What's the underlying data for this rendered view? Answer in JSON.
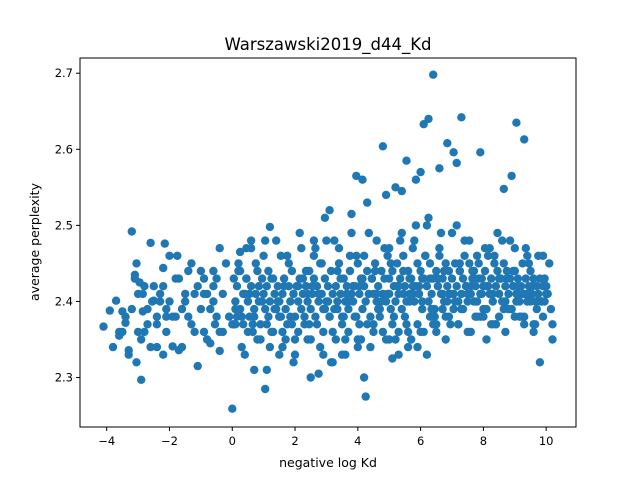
{
  "chart_data": {
    "type": "scatter",
    "title": "Warszawski2019_d44_Kd",
    "xlabel": "negative log Kd",
    "ylabel": "average perplexity",
    "xlim": [
      -4.85,
      10.95
    ],
    "ylim": [
      2.235,
      2.72
    ],
    "xticks": [
      -4,
      -2,
      0,
      2,
      4,
      6,
      8,
      10
    ],
    "yticks": [
      2.3,
      2.4,
      2.5,
      2.6,
      2.7
    ],
    "grid": false,
    "legend": "none",
    "color": "#1f77b4",
    "series": [
      {
        "x": [
          -4.1,
          -3.9,
          -3.7,
          -3.6,
          -3.5,
          -3.4,
          -3.3,
          -3.2,
          -3.1,
          -3.05,
          -3.0,
          -2.95,
          -2.9,
          -2.85,
          -2.8,
          -2.7,
          -2.6,
          -2.5,
          -2.4,
          -2.3,
          -2.2,
          -2.15,
          -2.1,
          -2.0,
          -1.9,
          -1.8,
          -1.7,
          -1.6,
          -1.5,
          -1.4,
          -1.3,
          -1.2,
          -1.1,
          -1.0,
          -0.9,
          -0.8,
          -0.7,
          -0.6,
          -0.5,
          -0.4,
          -0.3,
          -0.2,
          -3.6,
          -3.4,
          -3.2,
          -2.9,
          -2.7,
          -2.5,
          -2.3,
          -2.1,
          -1.9,
          -1.7,
          -1.5,
          -1.3,
          -1.1,
          -0.9,
          -0.7,
          -0.5,
          -0.3,
          -3.8,
          -3.3,
          -2.8,
          -2.6,
          -2.4,
          -2.2,
          -1.6,
          -1.2,
          -0.8,
          -0.6,
          -0.4,
          -3.05,
          -2.4,
          -1.8,
          -0.9,
          -0.4,
          -2.85,
          -2.1,
          -3.1,
          -2.2,
          -1.0,
          -0.6,
          -2.55,
          -3.0,
          -1.75,
          -0.55,
          -3.5,
          -2.0,
          -1.4,
          -0.1,
          0.0,
          0.05,
          0.1,
          0.15,
          0.2,
          0.25,
          0.3,
          0.35,
          0.4,
          0.45,
          0.5,
          0.55,
          0.6,
          0.65,
          0.7,
          0.75,
          0.8,
          0.85,
          0.9,
          0.95,
          1.0,
          1.05,
          1.1,
          1.15,
          1.2,
          1.25,
          1.3,
          1.35,
          1.4,
          1.45,
          1.5,
          1.55,
          1.6,
          1.65,
          1.7,
          1.75,
          1.8,
          1.85,
          1.9,
          1.95,
          2.0,
          2.05,
          2.1,
          2.15,
          2.2,
          2.25,
          2.3,
          2.35,
          2.4,
          2.45,
          2.5,
          2.55,
          2.6,
          2.65,
          2.7,
          2.75,
          2.8,
          2.85,
          2.9,
          2.95,
          3.0,
          3.05,
          3.1,
          3.15,
          3.2,
          3.25,
          3.3,
          3.35,
          3.4,
          3.45,
          3.5,
          3.55,
          3.6,
          3.65,
          3.7,
          3.75,
          3.8,
          3.85,
          3.9,
          3.95,
          4.0,
          4.05,
          4.1,
          4.15,
          4.2,
          4.25,
          4.3,
          4.35,
          4.4,
          4.45,
          4.5,
          4.55,
          4.6,
          4.65,
          4.7,
          4.75,
          4.8,
          4.85,
          4.9,
          4.95,
          5.0,
          5.05,
          5.1,
          5.15,
          5.2,
          5.25,
          5.3,
          5.35,
          5.4,
          5.45,
          5.5,
          5.55,
          5.6,
          5.65,
          5.7,
          5.75,
          5.8,
          5.85,
          5.9,
          5.95,
          6.0,
          6.05,
          6.1,
          6.15,
          6.2,
          6.25,
          6.3,
          6.35,
          6.4,
          6.45,
          6.5,
          6.55,
          6.6,
          6.65,
          6.7,
          6.75,
          6.8,
          6.85,
          6.9,
          6.95,
          7.0,
          7.05,
          7.1,
          7.15,
          7.2,
          7.25,
          7.3,
          7.35,
          7.4,
          7.45,
          7.5,
          7.55,
          7.6,
          7.65,
          7.7,
          7.75,
          7.8,
          7.85,
          7.9,
          7.95,
          8.0,
          8.05,
          8.1,
          8.15,
          8.2,
          8.25,
          8.3,
          8.35,
          8.4,
          8.45,
          8.5,
          8.55,
          8.6,
          8.65,
          8.7,
          8.75,
          8.8,
          8.85,
          8.9,
          8.95,
          9.0,
          9.05,
          9.1,
          9.15,
          9.2,
          9.25,
          9.3,
          9.35,
          9.4,
          9.45,
          9.5,
          9.55,
          9.6,
          9.65,
          9.7,
          9.75,
          9.8,
          9.85,
          9.9,
          9.95,
          10.0,
          10.1,
          10.2,
          0.1,
          0.3,
          0.5,
          0.7,
          0.9,
          1.1,
          1.3,
          1.5,
          1.7,
          1.9,
          2.1,
          2.3,
          2.5,
          2.7,
          2.9,
          3.1,
          3.3,
          3.5,
          3.7,
          3.9,
          4.1,
          4.3,
          4.5,
          4.7,
          4.9,
          5.1,
          5.3,
          5.5,
          5.7,
          5.9,
          6.1,
          6.3,
          6.5,
          6.7,
          6.9,
          7.1,
          7.3,
          7.5,
          7.7,
          7.9,
          8.1,
          8.3,
          8.5,
          8.7,
          8.9,
          9.1,
          9.3,
          9.5,
          9.7,
          9.9,
          0.2,
          0.6,
          1.0,
          1.4,
          1.8,
          2.2,
          2.6,
          3.0,
          3.4,
          3.8,
          4.2,
          4.6,
          5.0,
          5.4,
          5.8,
          6.2,
          6.6,
          7.0,
          7.4,
          7.8,
          8.2,
          8.6,
          9.0,
          9.4,
          9.8,
          0.4,
          0.8,
          1.2,
          1.6,
          2.0,
          2.4,
          2.8,
          3.2,
          3.6,
          4.0,
          4.4,
          4.8,
          5.2,
          5.6,
          6.0,
          6.4,
          6.8,
          7.2,
          7.6,
          8.0,
          8.4,
          8.8,
          9.2,
          9.6,
          10.0,
          0.05,
          0.55,
          1.15,
          1.65,
          2.25,
          2.75,
          3.35,
          3.85,
          4.45,
          4.95,
          5.45,
          5.95,
          6.55,
          7.05,
          7.65,
          8.15,
          8.75,
          9.25,
          9.85,
          0.35,
          0.85,
          1.45,
          1.95,
          2.55,
          3.05,
          3.65,
          4.15,
          4.75,
          5.25,
          5.75,
          6.35,
          6.85,
          7.45,
          7.95,
          8.55,
          9.05,
          9.55,
          10.05,
          0.25,
          0.75,
          1.25,
          1.75,
          2.35,
          2.85,
          3.45,
          3.95,
          4.55,
          5.05,
          5.65,
          6.15,
          6.75,
          7.25,
          7.85,
          8.35,
          8.95,
          9.45,
          9.95,
          0.15,
          0.65,
          1.35,
          1.85,
          2.45,
          2.95,
          3.55,
          4.05,
          4.65,
          5.15,
          5.55,
          6.05,
          6.45,
          6.95,
          7.35,
          7.75,
          8.25,
          8.65,
          9.15,
          9.65,
          10.15,
          0.45,
          1.05,
          1.55,
          2.15,
          2.65,
          3.25,
          3.75,
          4.35,
          4.85,
          5.35,
          5.85,
          6.25,
          6.65,
          7.15,
          7.55,
          8.05,
          8.45,
          8.85,
          9.35,
          9.75,
          0.0,
          0.2,
          0.45,
          1.1,
          1.5,
          2.0,
          2.5,
          2.9,
          3.2,
          3.6,
          4.0,
          4.5,
          5.0,
          5.3,
          5.6,
          5.9,
          6.2,
          6.5,
          6.8,
          7.2,
          7.5,
          7.8,
          8.1,
          8.4,
          8.7,
          9.0,
          9.3,
          9.6,
          9.9,
          10.2,
          6.4,
          6.1,
          6.25,
          7.3,
          9.05,
          9.3,
          6.85,
          7.05,
          4.8,
          7.9,
          7.15,
          6.0,
          5.55,
          6.6,
          5.85,
          3.95,
          4.15,
          5.4,
          8.9,
          8.65,
          0.25,
          0.6,
          1.2,
          2.6,
          2.95,
          3.1,
          3.8,
          4.3,
          4.9,
          5.2,
          4.25,
          4.2,
          3.15,
          2.75,
          1.95,
          1.6,
          0.7,
          1.05,
          3.5,
          5.1,
          6.35,
          6.7,
          5.45,
          5.75,
          6.05,
          7.6,
          8.2,
          8.5,
          8.95,
          9.45,
          0.1,
          0.95,
          1.5,
          2.1,
          2.4,
          3.35,
          3.7,
          4.05,
          4.6,
          5.0,
          5.3,
          5.65,
          5.95,
          6.3,
          6.55,
          6.9,
          7.25,
          7.7,
          8.0,
          8.3,
          8.75,
          9.1,
          9.4,
          9.7,
          10.0
        ],
        "y": [
          2.367,
          2.388,
          2.401,
          2.355,
          2.387,
          2.372,
          2.336,
          2.492,
          2.435,
          2.45,
          2.41,
          2.425,
          2.297,
          2.387,
          2.42,
          2.39,
          2.477,
          2.401,
          2.38,
          2.41,
          2.444,
          2.476,
          2.36,
          2.46,
          2.341,
          2.43,
          2.336,
          2.39,
          2.41,
          2.44,
          2.45,
          2.41,
          2.315,
          2.39,
          2.43,
          2.41,
          2.345,
          2.44,
          2.43,
          2.47,
          2.41,
          2.45,
          2.36,
          2.38,
          2.39,
          2.35,
          2.37,
          2.42,
          2.4,
          2.39,
          2.38,
          2.43,
          2.4,
          2.37,
          2.42,
          2.41,
          2.39,
          2.38,
          2.36,
          2.34,
          2.33,
          2.36,
          2.34,
          2.37,
          2.33,
          2.34,
          2.36,
          2.35,
          2.4,
          2.36,
          2.32,
          2.34,
          2.38,
          2.36,
          2.335,
          2.41,
          2.38,
          2.43,
          2.42,
          2.44,
          2.42,
          2.4,
          2.36,
          2.46,
          2.37,
          2.36,
          2.4,
          2.38,
          2.38,
          2.259,
          2.37,
          2.4,
          2.42,
          2.44,
          2.39,
          2.38,
          2.37,
          2.41,
          2.43,
          2.4,
          2.38,
          2.42,
          2.36,
          2.39,
          2.41,
          2.44,
          2.4,
          2.37,
          2.43,
          2.41,
          2.39,
          2.42,
          2.38,
          2.4,
          2.36,
          2.43,
          2.41,
          2.39,
          2.42,
          2.4,
          2.38,
          2.41,
          2.43,
          2.39,
          2.37,
          2.42,
          2.4,
          2.44,
          2.41,
          2.38,
          2.42,
          2.4,
          2.43,
          2.39,
          2.41,
          2.37,
          2.42,
          2.4,
          2.44,
          2.39,
          2.41,
          2.43,
          2.38,
          2.42,
          2.4,
          2.45,
          2.41,
          2.39,
          2.43,
          2.4,
          2.42,
          2.38,
          2.44,
          2.41,
          2.39,
          2.42,
          2.4,
          2.45,
          2.41,
          2.38,
          2.43,
          2.4,
          2.42,
          2.39,
          2.44,
          2.41,
          2.4,
          2.42,
          2.38,
          2.45,
          2.41,
          2.43,
          2.39,
          2.42,
          2.4,
          2.44,
          2.41,
          2.38,
          2.43,
          2.41,
          2.45,
          2.4,
          2.42,
          2.39,
          2.44,
          2.41,
          2.43,
          2.4,
          2.46,
          2.41,
          2.39,
          2.44,
          2.42,
          2.4,
          2.45,
          2.41,
          2.43,
          2.39,
          2.46,
          2.42,
          2.4,
          2.44,
          2.41,
          2.43,
          2.47,
          2.4,
          2.42,
          2.45,
          2.41,
          2.44,
          2.4,
          2.43,
          2.46,
          2.42,
          2.4,
          2.45,
          2.41,
          2.43,
          2.39,
          2.44,
          2.42,
          2.46,
          2.41,
          2.43,
          2.4,
          2.45,
          2.42,
          2.44,
          2.41,
          2.43,
          2.39,
          2.45,
          2.42,
          2.4,
          2.44,
          2.41,
          2.43,
          2.46,
          2.42,
          2.4,
          2.45,
          2.41,
          2.43,
          2.44,
          2.42,
          2.4,
          2.45,
          2.41,
          2.43,
          2.39,
          2.44,
          2.42,
          2.46,
          2.41,
          2.43,
          2.4,
          2.45,
          2.42,
          2.44,
          2.41,
          2.43,
          2.4,
          2.45,
          2.42,
          2.44,
          2.41,
          2.43,
          2.39,
          2.42,
          2.44,
          2.41,
          2.43,
          2.4,
          2.42,
          2.45,
          2.41,
          2.43,
          2.4,
          2.42,
          2.44,
          2.41,
          2.43,
          2.4,
          2.42,
          2.41,
          2.43,
          2.4,
          2.42,
          2.4,
          2.42,
          2.45,
          2.35,
          2.37,
          2.34,
          2.36,
          2.38,
          2.35,
          2.37,
          2.36,
          2.38,
          2.35,
          2.37,
          2.36,
          2.38,
          2.35,
          2.37,
          2.36,
          2.38,
          2.35,
          2.37,
          2.36,
          2.38,
          2.35,
          2.37,
          2.36,
          2.38,
          2.35,
          2.37,
          2.36,
          2.38,
          2.35,
          2.37,
          2.36,
          2.38,
          2.37,
          2.39,
          2.38,
          2.4,
          2.39,
          2.41,
          2.4,
          2.38,
          2.39,
          2.37,
          2.38,
          2.4,
          2.39,
          2.41,
          2.38,
          2.4,
          2.39,
          2.46,
          2.45,
          2.47,
          2.46,
          2.48,
          2.45,
          2.47,
          2.46,
          2.48,
          2.47,
          2.49,
          2.46,
          2.48,
          2.47,
          2.49,
          2.48,
          2.5,
          2.47,
          2.49,
          2.48,
          2.46,
          2.47,
          2.48,
          2.47,
          2.46,
          2.32,
          2.33,
          2.35,
          2.34,
          2.36,
          2.33,
          2.35,
          2.34,
          2.36,
          2.33,
          2.35,
          2.34,
          2.36,
          2.35,
          2.34,
          2.36,
          2.37,
          2.38,
          2.37,
          2.36,
          2.38,
          2.37,
          2.39,
          2.38,
          2.37,
          2.42,
          2.43,
          2.41,
          2.44,
          2.42,
          2.43,
          2.41,
          2.44,
          2.42,
          2.43,
          2.41,
          2.44,
          2.42,
          2.43,
          2.41,
          2.44,
          2.42,
          2.43,
          2.41,
          2.4,
          2.41,
          2.42,
          2.4,
          2.41,
          2.42,
          2.4,
          2.41,
          2.43,
          2.4,
          2.42,
          2.41,
          2.43,
          2.4,
          2.42,
          2.41,
          2.43,
          2.4,
          2.42,
          2.41,
          2.44,
          2.45,
          2.43,
          2.46,
          2.44,
          2.45,
          2.43,
          2.46,
          2.44,
          2.45,
          2.43,
          2.46,
          2.44,
          2.45,
          2.43,
          2.46,
          2.44,
          2.45,
          2.43,
          2.38,
          2.37,
          2.39,
          2.38,
          2.37,
          2.39,
          2.38,
          2.37,
          2.39,
          2.38,
          2.37,
          2.39,
          2.38,
          2.37,
          2.39,
          2.38,
          2.37,
          2.39,
          2.38,
          2.37,
          2.39,
          2.47,
          2.48,
          2.46,
          2.49,
          2.47,
          2.48,
          2.46,
          2.49,
          2.47,
          2.48,
          2.5,
          2.51,
          2.49,
          2.5,
          2.48,
          2.47,
          2.49,
          2.48,
          2.47,
          2.46,
          2.37,
          2.44,
          2.43,
          2.31,
          2.33,
          2.35,
          2.3,
          2.33,
          2.32,
          2.35,
          2.34,
          2.37,
          2.35,
          2.33,
          2.36,
          2.34,
          2.33,
          2.36,
          2.35,
          2.37,
          2.36,
          2.38,
          2.35,
          2.37,
          2.36,
          2.38,
          2.37,
          2.36,
          2.38,
          2.37,
          2.698,
          2.633,
          2.64,
          2.642,
          2.635,
          2.613,
          2.608,
          2.596,
          2.604,
          2.596,
          2.582,
          2.57,
          2.585,
          2.575,
          2.56,
          2.565,
          2.56,
          2.545,
          2.565,
          2.548,
          2.465,
          2.48,
          2.498,
          2.48,
          2.51,
          2.52,
          2.515,
          2.53,
          2.54,
          2.55,
          2.275,
          2.3,
          2.32,
          2.305,
          2.32,
          2.34,
          2.31,
          2.285,
          2.33,
          2.325,
          2.39,
          2.41,
          2.41,
          2.42,
          2.43,
          2.42,
          2.41,
          2.43,
          2.42,
          2.41,
          2.39,
          2.4,
          2.38,
          2.42,
          2.41,
          2.39,
          2.4,
          2.42,
          2.41,
          2.43,
          2.42,
          2.4,
          2.41,
          2.43,
          2.42,
          2.41,
          2.44,
          2.43,
          2.42,
          2.41,
          2.43,
          2.42,
          2.41,
          2.4,
          2.41
        ]
      }
    ]
  }
}
